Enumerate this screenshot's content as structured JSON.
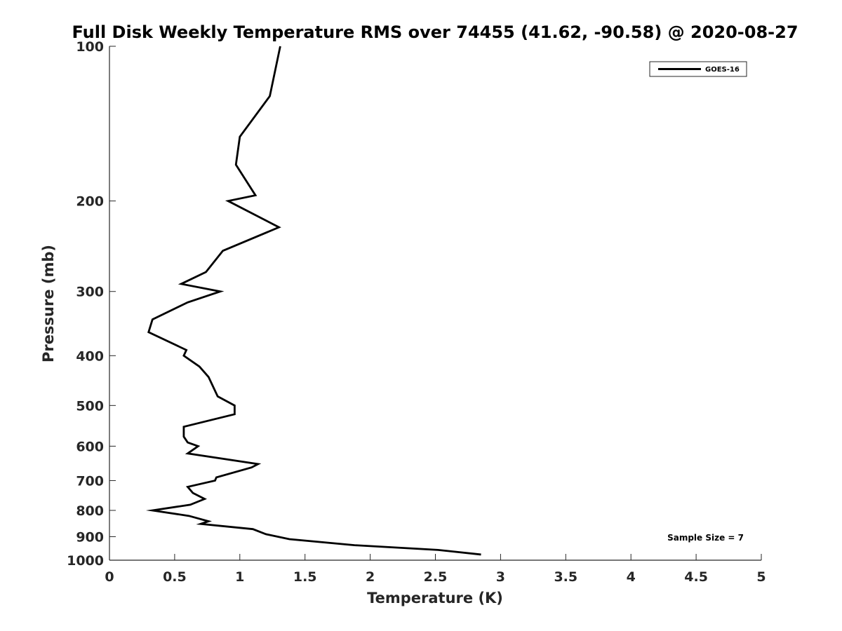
{
  "chart_data": {
    "type": "line",
    "title": "Full Disk Weekly Temperature RMS over 74455 (41.62, -90.58) @ 2020-08-27",
    "xlabel": "Temperature (K)",
    "ylabel": "Pressure (mb)",
    "xlim": [
      0,
      5
    ],
    "ylim": [
      100,
      1000
    ],
    "y_scale": "log",
    "y_reversed": true,
    "xticks": [
      0,
      0.5,
      1,
      1.5,
      2,
      2.5,
      3,
      3.5,
      4,
      4.5,
      5
    ],
    "xtick_labels": [
      "0",
      "0.5",
      "1",
      "1.5",
      "2",
      "2.5",
      "3",
      "3.5",
      "4",
      "4.5",
      "5"
    ],
    "yticks": [
      100,
      200,
      300,
      400,
      500,
      600,
      700,
      800,
      900,
      1000
    ],
    "ytick_labels": [
      "100",
      "200",
      "300",
      "400",
      "500",
      "600",
      "700",
      "800",
      "900",
      "1000"
    ],
    "grid": false,
    "legend_position": "top-right",
    "series": [
      {
        "name": "GOES-16",
        "color": "#000000",
        "points": [
          [
            1.31,
            100
          ],
          [
            1.23,
            125
          ],
          [
            1.0,
            150
          ],
          [
            0.97,
            170
          ],
          [
            1.12,
            195
          ],
          [
            0.91,
            200
          ],
          [
            1.3,
            225
          ],
          [
            0.87,
            250
          ],
          [
            0.74,
            275
          ],
          [
            0.55,
            290
          ],
          [
            0.85,
            300
          ],
          [
            0.6,
            315
          ],
          [
            0.33,
            340
          ],
          [
            0.3,
            360
          ],
          [
            0.59,
            390
          ],
          [
            0.57,
            400
          ],
          [
            0.69,
            420
          ],
          [
            0.76,
            440
          ],
          [
            0.83,
            480
          ],
          [
            0.96,
            500
          ],
          [
            0.96,
            520
          ],
          [
            0.57,
            550
          ],
          [
            0.57,
            575
          ],
          [
            0.6,
            590
          ],
          [
            0.68,
            600
          ],
          [
            0.6,
            620
          ],
          [
            1.14,
            650
          ],
          [
            1.09,
            660
          ],
          [
            0.82,
            690
          ],
          [
            0.81,
            700
          ],
          [
            0.6,
            720
          ],
          [
            0.64,
            740
          ],
          [
            0.73,
            760
          ],
          [
            0.62,
            780
          ],
          [
            0.33,
            800
          ],
          [
            0.61,
            820
          ],
          [
            0.76,
            840
          ],
          [
            0.7,
            850
          ],
          [
            1.1,
            870
          ],
          [
            1.2,
            890
          ],
          [
            1.38,
            910
          ],
          [
            1.88,
            935
          ],
          [
            2.52,
            955
          ],
          [
            2.85,
            975
          ]
        ]
      }
    ],
    "annotations": [
      "Sample Size = 7"
    ]
  }
}
